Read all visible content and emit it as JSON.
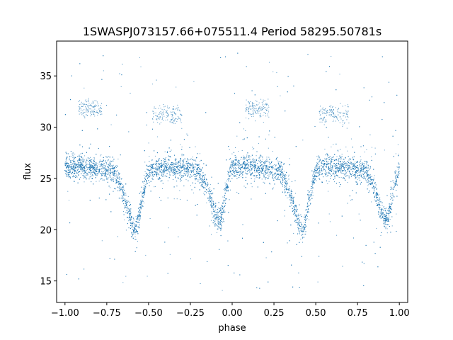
{
  "chart_data": {
    "type": "scatter",
    "title": "1SWASPJ073157.66+075511.4 Period 58295.50781s",
    "xlabel": "phase",
    "ylabel": "flux",
    "xlim": [
      -1.05,
      1.05
    ],
    "ylim": [
      12.9,
      38.4
    ],
    "xticks": [
      -1.0,
      -0.75,
      -0.5,
      -0.25,
      0.0,
      0.25,
      0.5,
      0.75,
      1.0
    ],
    "xtick_labels": [
      "−1.00",
      "−0.75",
      "−0.50",
      "−0.25",
      "0.00",
      "0.25",
      "0.50",
      "0.75",
      "1.00"
    ],
    "yticks": [
      15,
      20,
      25,
      30,
      35
    ],
    "ytick_labels": [
      "15",
      "20",
      "25",
      "30",
      "35"
    ],
    "grid": false,
    "legend": "none",
    "marker_color": "#1f77b4",
    "series": [
      {
        "light_curve_profile": {
          "x": [
            -1.0,
            -0.9,
            -0.8,
            -0.7,
            -0.66,
            -0.62,
            -0.6,
            -0.58,
            -0.56,
            -0.54,
            -0.5,
            -0.45,
            -0.4,
            -0.3,
            -0.2,
            -0.16,
            -0.12,
            -0.09,
            -0.07,
            -0.05,
            -0.02,
            0.0,
            0.1,
            0.2,
            0.3,
            0.34,
            0.38,
            0.4,
            0.42,
            0.44,
            0.46,
            0.5,
            0.55,
            0.6,
            0.7,
            0.8,
            0.84,
            0.88,
            0.91,
            0.93,
            0.95,
            0.98,
            1.0
          ],
          "y": [
            26.0,
            26.2,
            26.0,
            25.6,
            24.0,
            21.8,
            20.5,
            19.9,
            20.8,
            23.0,
            25.7,
            26.0,
            26.1,
            26.0,
            25.7,
            24.5,
            22.5,
            21.0,
            20.9,
            22.5,
            25.2,
            26.0,
            26.2,
            26.0,
            25.6,
            24.0,
            21.8,
            20.5,
            19.9,
            20.8,
            23.0,
            25.7,
            26.0,
            26.1,
            26.0,
            25.7,
            24.5,
            22.5,
            21.0,
            20.9,
            22.5,
            25.2,
            26.0
          ]
        },
        "secondary_clumps": [
          {
            "x_range": [
              -0.92,
              -0.78
            ],
            "y_center": 31.8
          },
          {
            "x_range": [
              -0.48,
              -0.3
            ],
            "y_center": 31.2
          },
          {
            "x_range": [
              0.08,
              0.22
            ],
            "y_center": 31.8
          },
          {
            "x_range": [
              0.52,
              0.7
            ],
            "y_center": 31.2
          }
        ],
        "approx_point_count": 9000,
        "scatter_spread": 0.55,
        "outlier_range": [
          14.0,
          37.5
        ]
      }
    ]
  }
}
